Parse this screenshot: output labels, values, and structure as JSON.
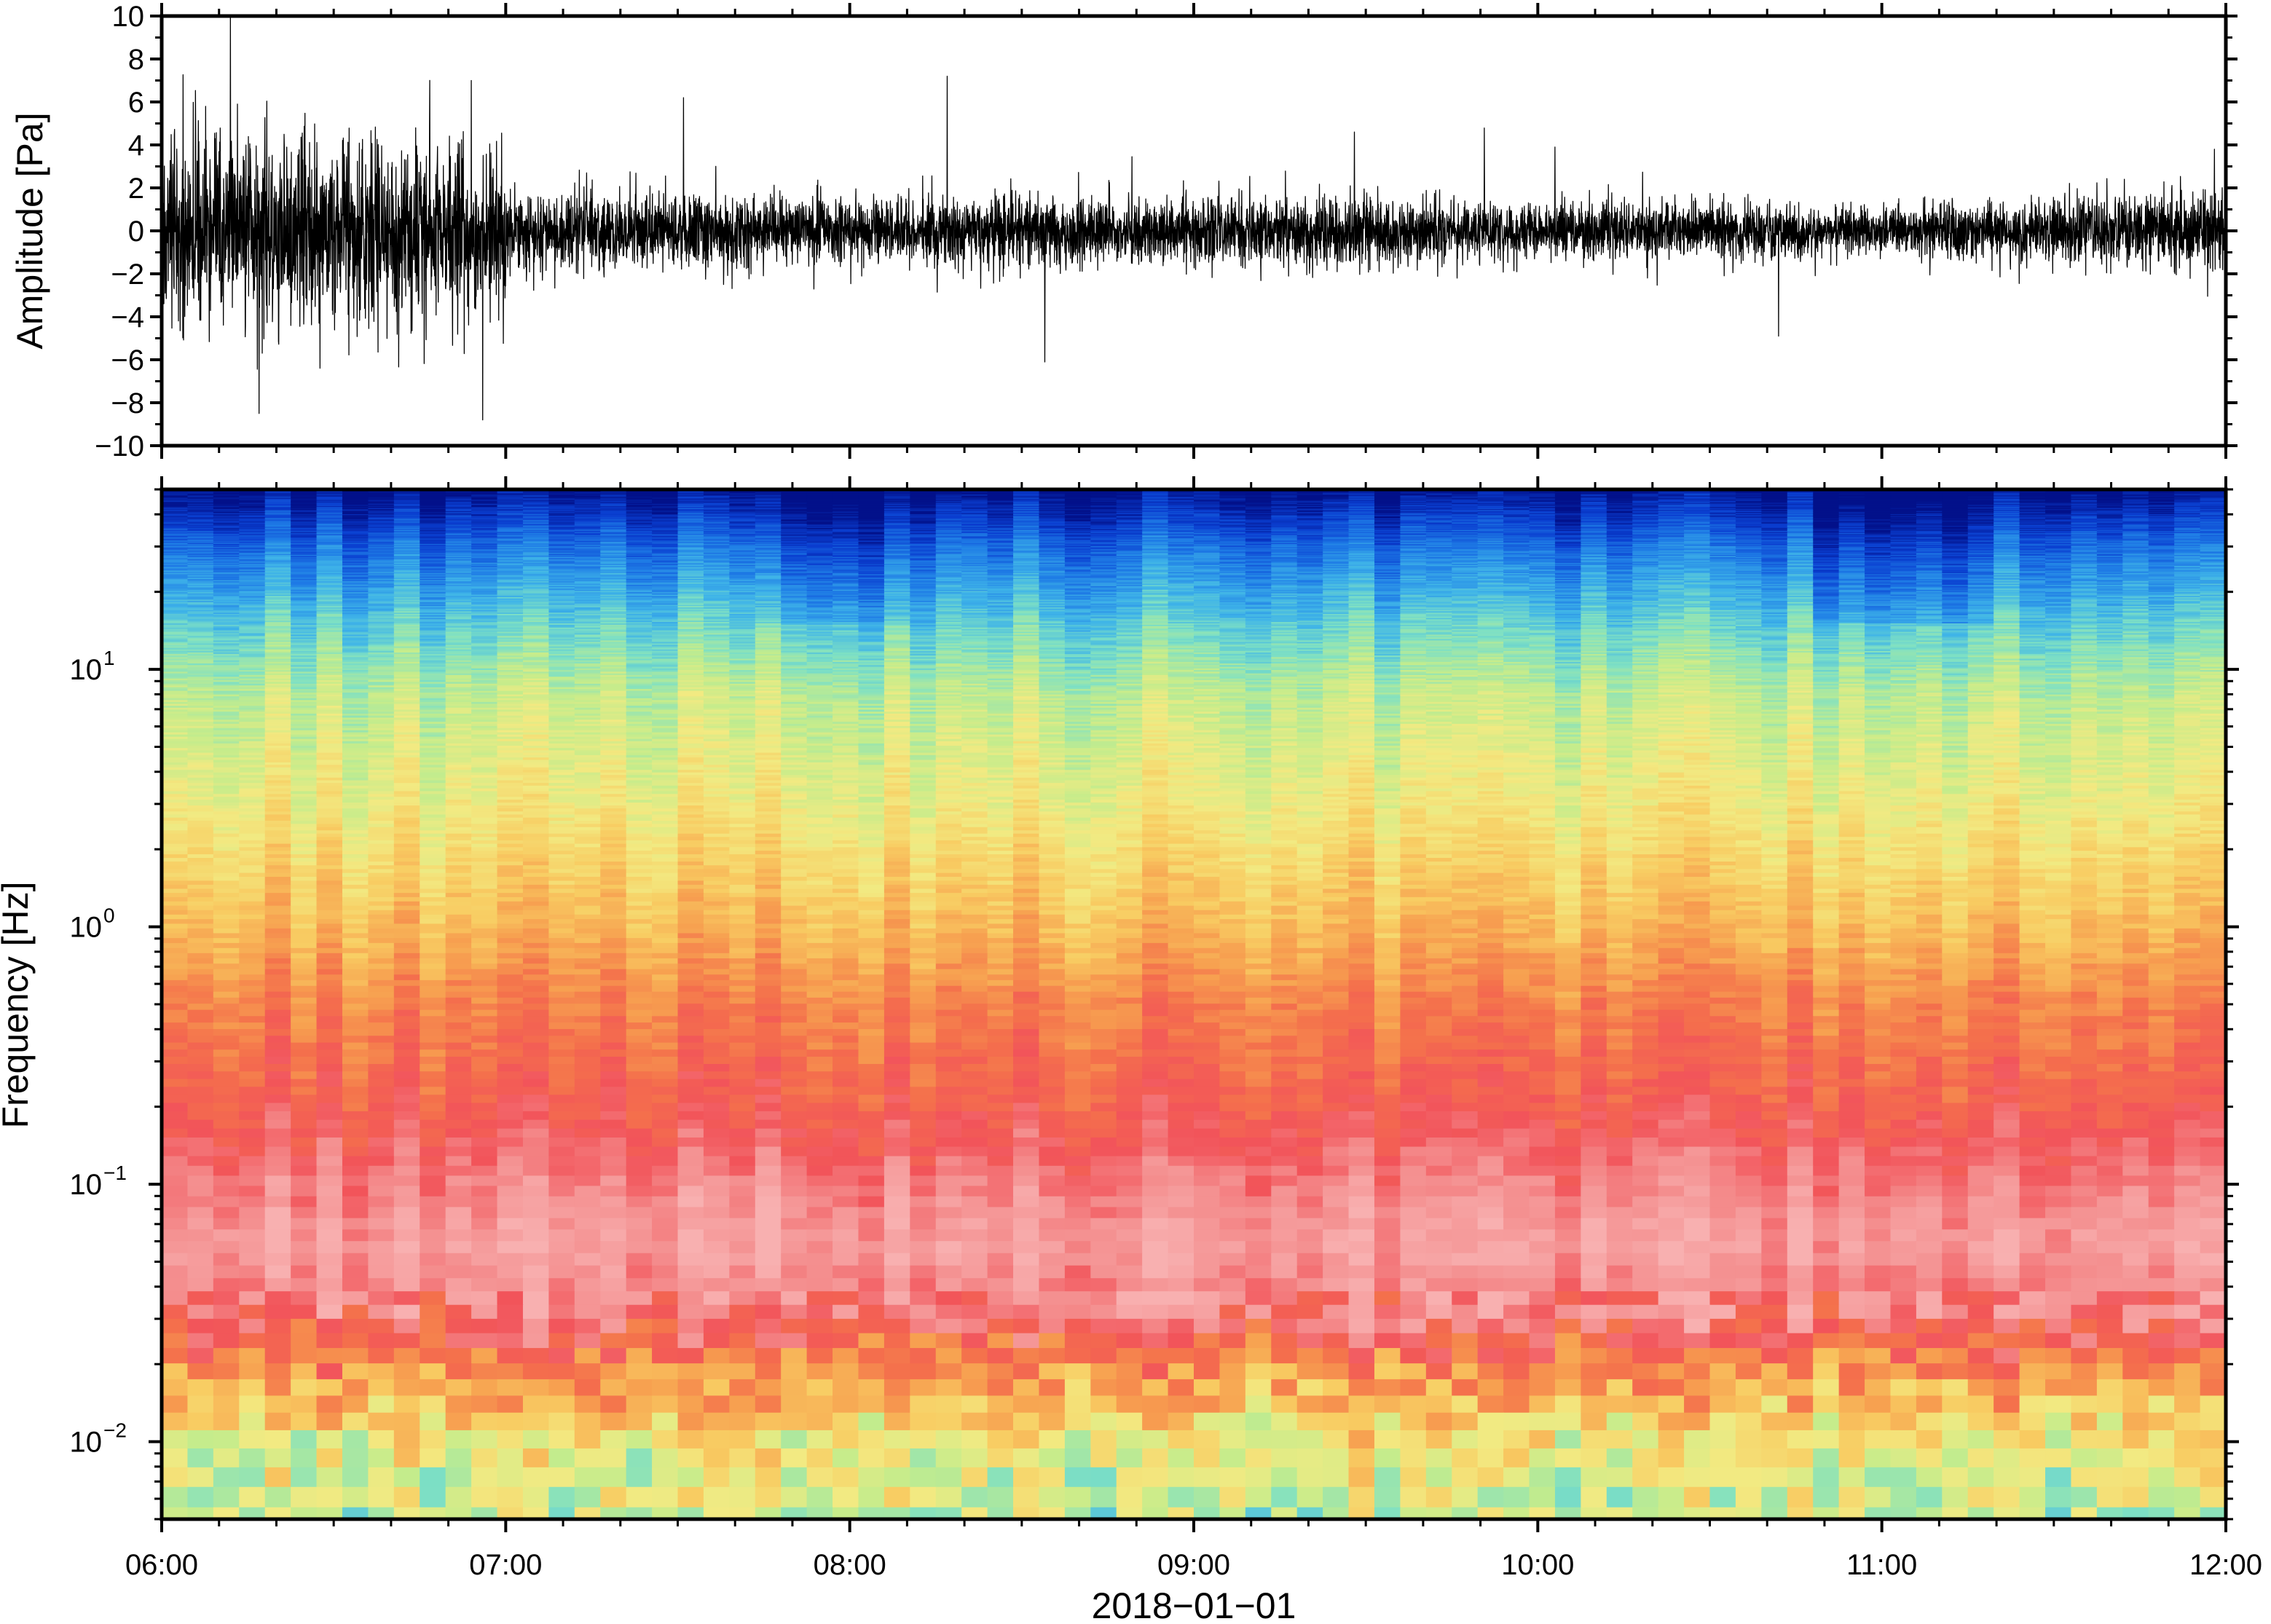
{
  "chart_data": [
    {
      "type": "line",
      "ylabel": "Amplitude [Pa]",
      "ylim": [
        -10,
        10
      ],
      "yticks": [
        10,
        8,
        6,
        4,
        2,
        0,
        -2,
        -4,
        -6,
        -8,
        -10
      ],
      "ytick_labels": [
        "10",
        "8",
        "6",
        "4",
        "2",
        "0",
        "−2",
        "−4",
        "−6",
        "−8",
        "−10"
      ],
      "xlim": [
        "06:00",
        "12:00"
      ],
      "grid": false,
      "series": [
        {
          "color": "#000000",
          "envelope_hours": [
            6.0,
            6.25,
            6.5,
            6.75,
            6.98,
            7.02,
            7.5,
            8.0,
            8.5,
            9.0,
            9.5,
            10.0,
            10.5,
            11.0,
            11.5,
            12.0
          ],
          "envelope_pa": [
            4.8,
            5.3,
            4.9,
            4.7,
            4.9,
            2.3,
            2.0,
            1.9,
            2.0,
            1.9,
            1.8,
            1.5,
            1.7,
            1.2,
            1.8,
            2.0
          ],
          "peaks": [
            {
              "t": "06:12",
              "value": 10.0
            },
            {
              "t": "06:17",
              "value": -8.5
            },
            {
              "t": "06:56",
              "value": -8.8
            },
            {
              "t": "06:54",
              "value": 7.0
            },
            {
              "t": "07:31",
              "value": 6.2
            },
            {
              "t": "08:17",
              "value": 7.2
            },
            {
              "t": "08:34",
              "value": -6.1
            },
            {
              "t": "09:28",
              "value": 4.6
            },
            {
              "t": "10:03",
              "value": 3.9
            },
            {
              "t": "10:42",
              "value": -4.9
            },
            {
              "t": "11:58",
              "value": 3.8
            }
          ]
        }
      ]
    },
    {
      "type": "heatmap",
      "ylabel": "Frequency [Hz]",
      "xlabel": "2018−01−01",
      "yscale": "log",
      "ylim": [
        0.005,
        50
      ],
      "yticks": [
        0.01,
        0.1,
        1,
        10
      ],
      "ytick_labels": [
        {
          "base": "10",
          "exp": "−2"
        },
        {
          "base": "10",
          "exp": "−1"
        },
        {
          "base": "10",
          "exp": "0"
        },
        {
          "base": "10",
          "exp": "1"
        }
      ],
      "xticks": [
        "06:00",
        "07:00",
        "08:00",
        "09:00",
        "10:00",
        "11:00",
        "12:00"
      ],
      "xlim": [
        "06:00",
        "12:00"
      ],
      "colormap": [
        "#02118a",
        "#0a3ed0",
        "#1f7de6",
        "#3fb4e8",
        "#7ee0c4",
        "#c4ec8c",
        "#f2ea82",
        "#f8cc62",
        "#f7a050",
        "#f4704c",
        "#f2545a",
        "#f49090",
        "#f8b0b0"
      ],
      "frequency_profile": {
        "frequency_hz": [
          50,
          30,
          15,
          8,
          3,
          1,
          0.5,
          0.2,
          0.1,
          0.06,
          0.03,
          0.02,
          0.01,
          0.005
        ],
        "colormap_level": [
          0.0,
          0.15,
          0.3,
          0.42,
          0.5,
          0.62,
          0.72,
          0.8,
          0.9,
          0.96,
          0.88,
          0.72,
          0.5,
          0.42
        ]
      }
    }
  ]
}
